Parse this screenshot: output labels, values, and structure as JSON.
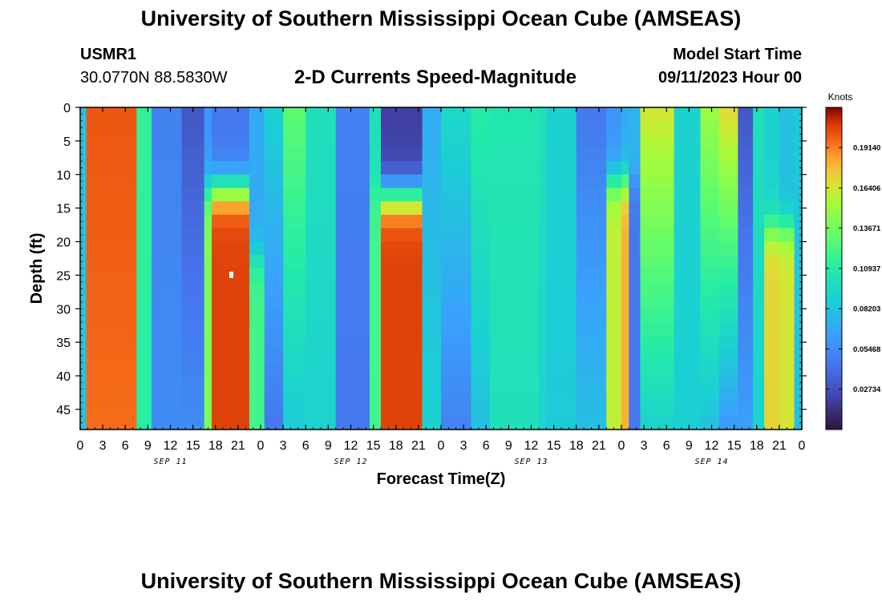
{
  "header": {
    "title": "University of Southern Mississippi Ocean Cube (AMSEAS)",
    "station_name": "USMR1",
    "station_coords": "30.0770N  88.5830W",
    "plot_title": "2-D Currents Speed-Magnitude",
    "model_start_label": "Model Start Time",
    "model_start_value": "09/11/2023 Hour 00"
  },
  "footer": {
    "title": "University of Southern Mississippi Ocean Cube (AMSEAS)"
  },
  "chart_data": {
    "type": "heatmap",
    "title": "2-D Currents Speed-Magnitude",
    "xlabel": "Forecast Time(Z)",
    "ylabel": "Depth (ft)",
    "x_range_hours": [
      0,
      96
    ],
    "y_range_ft": [
      0,
      48
    ],
    "y_inverted": true,
    "x_tick_labels": [
      "0",
      "3",
      "6",
      "9",
      "12",
      "15",
      "18",
      "21",
      "0",
      "3",
      "6",
      "9",
      "12",
      "15",
      "18",
      "21",
      "0",
      "3",
      "6",
      "9",
      "12",
      "15",
      "18",
      "21",
      "0",
      "3",
      "6",
      "9",
      "12",
      "15",
      "18",
      "21",
      "0"
    ],
    "x_tick_step_hours": 3,
    "y_tick_values": [
      0,
      5,
      10,
      15,
      20,
      25,
      30,
      35,
      40,
      45
    ],
    "date_labels": [
      {
        "label": "SEP 11",
        "hour": 12
      },
      {
        "label": "SEP 12",
        "hour": 36
      },
      {
        "label": "SEP 13",
        "hour": 60
      },
      {
        "label": "SEP 14",
        "hour": 84
      }
    ],
    "colorbar": {
      "title": "Knots",
      "tick_labels": [
        "0.19140",
        "0.16406",
        "0.13671",
        "0.10937",
        "0.08203",
        "0.05468",
        "0.02734"
      ],
      "tick_values": [
        0.1914,
        0.16406,
        0.13671,
        0.10937,
        0.08203,
        0.05468,
        0.02734
      ],
      "range": [
        0,
        0.2187
      ]
    },
    "columns": [
      {
        "hours": [
          0,
          0.8
        ],
        "top": 0.082,
        "bottom": 0.082
      },
      {
        "hours": [
          0.8,
          7.5
        ],
        "top": 0.2,
        "bottom": 0.195
      },
      {
        "hours": [
          7.5,
          9.5
        ],
        "top": 0.115,
        "bottom": 0.11
      },
      {
        "hours": [
          9.5,
          13.5
        ],
        "top": 0.05,
        "bottom": 0.055
      },
      {
        "hours": [
          13.5,
          16.5
        ],
        "top": 0.03,
        "bottom": 0.055
      },
      {
        "hours": [
          16.5,
          17.5
        ],
        "top": 0.06,
        "bottom": 0.14,
        "split_ft": 12
      },
      {
        "hours": [
          17.5,
          22.5
        ],
        "top": 0.045,
        "bottom": 0.205,
        "split_ft": 12
      },
      {
        "hours": [
          22.5,
          24.5
        ],
        "top": 0.07,
        "bottom": 0.12,
        "split_ft": 22
      },
      {
        "hours": [
          24.5,
          27
        ],
        "top": 0.09,
        "bottom": 0.045
      },
      {
        "hours": [
          27,
          30
        ],
        "top": 0.13,
        "bottom": 0.085
      },
      {
        "hours": [
          30,
          34
        ],
        "top": 0.1,
        "bottom": 0.09
      },
      {
        "hours": [
          34,
          38.5
        ],
        "top": 0.05,
        "bottom": 0.045
      },
      {
        "hours": [
          38.5,
          40
        ],
        "top": 0.1,
        "bottom": 0.12,
        "split_ft": 12
      },
      {
        "hours": [
          40,
          45.5
        ],
        "top": 0.02,
        "bottom": 0.205,
        "split_ft": 13
      },
      {
        "hours": [
          45.5,
          48
        ],
        "top": 0.07,
        "bottom": 0.09
      },
      {
        "hours": [
          48,
          52
        ],
        "top": 0.095,
        "bottom": 0.05
      },
      {
        "hours": [
          52,
          54.5
        ],
        "top": 0.11,
        "bottom": 0.08
      },
      {
        "hours": [
          54.5,
          61
        ],
        "top": 0.105,
        "bottom": 0.1
      },
      {
        "hours": [
          61,
          62
        ],
        "top": 0.1,
        "bottom": 0.09
      },
      {
        "hours": [
          62,
          66
        ],
        "top": 0.09,
        "bottom": 0.085
      },
      {
        "hours": [
          66,
          70
        ],
        "top": 0.045,
        "bottom": 0.08
      },
      {
        "hours": [
          70,
          72
        ],
        "top": 0.06,
        "bottom": 0.16,
        "split_ft": 11
      },
      {
        "hours": [
          72,
          73
        ],
        "top": 0.07,
        "bottom": 0.18,
        "split_ft": 11
      },
      {
        "hours": [
          73,
          74.5
        ],
        "top": 0.075,
        "bottom": 0.045,
        "split_ft": 11
      },
      {
        "hours": [
          74.5,
          79
        ],
        "top": 0.165,
        "bottom": 0.09
      },
      {
        "hours": [
          79,
          82.5
        ],
        "top": 0.09,
        "bottom": 0.088
      },
      {
        "hours": [
          82.5,
          85
        ],
        "top": 0.15,
        "bottom": 0.08
      },
      {
        "hours": [
          85,
          87.5
        ],
        "top": 0.17,
        "bottom": 0.06
      },
      {
        "hours": [
          87.5,
          89.5
        ],
        "top": 0.03,
        "bottom": 0.065
      },
      {
        "hours": [
          89.5,
          91
        ],
        "top": 0.1,
        "bottom": 0.09
      },
      {
        "hours": [
          91,
          93
        ],
        "top": 0.09,
        "bottom": 0.17,
        "split_ft": 18
      },
      {
        "hours": [
          93,
          95
        ],
        "top": 0.08,
        "bottom": 0.165,
        "split_ft": 18
      },
      {
        "hours": [
          95,
          96
        ],
        "top": 0.085,
        "bottom": 0.08
      }
    ]
  }
}
